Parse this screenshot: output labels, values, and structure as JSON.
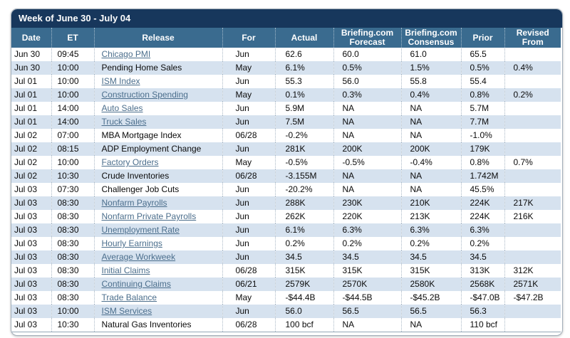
{
  "title": "Week of June 30 - July 04",
  "colors": {
    "title_bar": "#17375C",
    "header_bg": "#3A6B8F",
    "alt_row_bg": "#D6E2EF",
    "link_color": "#4B6E8C"
  },
  "table": {
    "columns": [
      {
        "key": "date",
        "label": "Date"
      },
      {
        "key": "et",
        "label": "ET"
      },
      {
        "key": "release",
        "label": "Release"
      },
      {
        "key": "for",
        "label": "For"
      },
      {
        "key": "actual",
        "label": "Actual"
      },
      {
        "key": "forecast",
        "label": "Briefing.com Forecast"
      },
      {
        "key": "consensus",
        "label": "Briefing.com Consensus"
      },
      {
        "key": "prior",
        "label": "Prior"
      },
      {
        "key": "revised",
        "label": "Revised From"
      }
    ],
    "rows": [
      {
        "date": "Jun 30",
        "et": "09:45",
        "release": "Chicago PMI",
        "is_link": true,
        "for": "Jun",
        "actual": "62.6",
        "forecast": "60.0",
        "consensus": "61.0",
        "prior": "65.5",
        "revised": ""
      },
      {
        "date": "Jun 30",
        "et": "10:00",
        "release": "Pending Home Sales",
        "is_link": false,
        "for": "May",
        "actual": "6.1%",
        "forecast": "0.5%",
        "consensus": "1.5%",
        "prior": "0.5%",
        "revised": "0.4%"
      },
      {
        "date": "Jul 01",
        "et": "10:00",
        "release": "ISM Index",
        "is_link": true,
        "for": "Jun",
        "actual": "55.3",
        "forecast": "56.0",
        "consensus": "55.8",
        "prior": "55.4",
        "revised": ""
      },
      {
        "date": "Jul 01",
        "et": "10:00",
        "release": "Construction Spending",
        "is_link": true,
        "for": "May",
        "actual": "0.1%",
        "forecast": "0.3%",
        "consensus": "0.4%",
        "prior": "0.8%",
        "revised": "0.2%"
      },
      {
        "date": "Jul 01",
        "et": "14:00",
        "release": "Auto Sales",
        "is_link": true,
        "for": "Jun",
        "actual": "5.9M",
        "forecast": "NA",
        "consensus": "NA",
        "prior": "5.7M",
        "revised": ""
      },
      {
        "date": "Jul 01",
        "et": "14:00",
        "release": "Truck Sales",
        "is_link": true,
        "for": "Jun",
        "actual": "7.5M",
        "forecast": "NA",
        "consensus": "NA",
        "prior": "7.7M",
        "revised": ""
      },
      {
        "date": "Jul 02",
        "et": "07:00",
        "release": "MBA Mortgage Index",
        "is_link": false,
        "for": "06/28",
        "actual": "-0.2%",
        "forecast": "NA",
        "consensus": "NA",
        "prior": "-1.0%",
        "revised": ""
      },
      {
        "date": "Jul 02",
        "et": "08:15",
        "release": "ADP Employment Change",
        "is_link": false,
        "for": "Jun",
        "actual": "281K",
        "forecast": "200K",
        "consensus": "200K",
        "prior": "179K",
        "revised": ""
      },
      {
        "date": "Jul 02",
        "et": "10:00",
        "release": "Factory Orders",
        "is_link": true,
        "for": "May",
        "actual": "-0.5%",
        "forecast": "-0.5%",
        "consensus": "-0.4%",
        "prior": "0.8%",
        "revised": "0.7%"
      },
      {
        "date": "Jul 02",
        "et": "10:30",
        "release": "Crude Inventories",
        "is_link": false,
        "for": "06/28",
        "actual": "-3.155M",
        "forecast": "NA",
        "consensus": "NA",
        "prior": "1.742M",
        "revised": ""
      },
      {
        "date": "Jul 03",
        "et": "07:30",
        "release": "Challenger Job Cuts",
        "is_link": false,
        "for": "Jun",
        "actual": "-20.2%",
        "forecast": "NA",
        "consensus": "NA",
        "prior": "45.5%",
        "revised": ""
      },
      {
        "date": "Jul 03",
        "et": "08:30",
        "release": "Nonfarm Payrolls",
        "is_link": true,
        "for": "Jun",
        "actual": "288K",
        "forecast": "230K",
        "consensus": "210K",
        "prior": "224K",
        "revised": "217K"
      },
      {
        "date": "Jul 03",
        "et": "08:30",
        "release": "Nonfarm Private Payrolls",
        "is_link": true,
        "for": "Jun",
        "actual": "262K",
        "forecast": "220K",
        "consensus": "213K",
        "prior": "224K",
        "revised": "216K"
      },
      {
        "date": "Jul 03",
        "et": "08:30",
        "release": "Unemployment Rate",
        "is_link": true,
        "for": "Jun",
        "actual": "6.1%",
        "forecast": "6.3%",
        "consensus": "6.3%",
        "prior": "6.3%",
        "revised": ""
      },
      {
        "date": "Jul 03",
        "et": "08:30",
        "release": "Hourly Earnings",
        "is_link": true,
        "for": "Jun",
        "actual": "0.2%",
        "forecast": "0.2%",
        "consensus": "0.2%",
        "prior": "0.2%",
        "revised": ""
      },
      {
        "date": "Jul 03",
        "et": "08:30",
        "release": "Average Workweek",
        "is_link": true,
        "for": "Jun",
        "actual": "34.5",
        "forecast": "34.5",
        "consensus": "34.5",
        "prior": "34.5",
        "revised": ""
      },
      {
        "date": "Jul 03",
        "et": "08:30",
        "release": "Initial Claims",
        "is_link": true,
        "for": "06/28",
        "actual": "315K",
        "forecast": "315K",
        "consensus": "315K",
        "prior": "313K",
        "revised": "312K"
      },
      {
        "date": "Jul 03",
        "et": "08:30",
        "release": "Continuing Claims",
        "is_link": true,
        "for": "06/21",
        "actual": "2579K",
        "forecast": "2570K",
        "consensus": "2580K",
        "prior": "2568K",
        "revised": "2571K"
      },
      {
        "date": "Jul 03",
        "et": "08:30",
        "release": "Trade Balance",
        "is_link": true,
        "for": "May",
        "actual": "-$44.4B",
        "forecast": "-$44.5B",
        "consensus": "-$45.2B",
        "prior": "-$47.0B",
        "revised": "-$47.2B"
      },
      {
        "date": "Jul 03",
        "et": "10:00",
        "release": "ISM Services",
        "is_link": true,
        "for": "Jun",
        "actual": "56.0",
        "forecast": "56.5",
        "consensus": "56.5",
        "prior": "56.3",
        "revised": ""
      },
      {
        "date": "Jul 03",
        "et": "10:30",
        "release": "Natural Gas Inventories",
        "is_link": false,
        "for": "06/28",
        "actual": "100 bcf",
        "forecast": "NA",
        "consensus": "NA",
        "prior": "110 bcf",
        "revised": ""
      }
    ]
  }
}
